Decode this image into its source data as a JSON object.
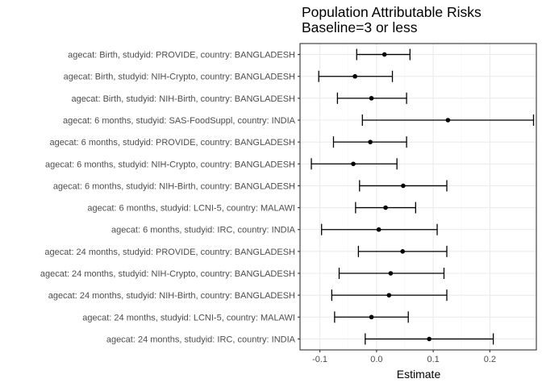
{
  "chart_data": {
    "type": "forest",
    "title": "Population Attributable Risks",
    "subtitle": "Baseline=3 or less",
    "xlabel": "Estimate",
    "ylabel": "",
    "xlim": [
      -0.135,
      0.282
    ],
    "xticks": [
      -0.1,
      0.0,
      0.1,
      0.2
    ],
    "xtick_labels": [
      "-0.1",
      "0.0",
      "0.1",
      "0.2"
    ],
    "grid": true,
    "theme": "bw",
    "colors": {
      "panel_border": "#333333",
      "grid_major": "#ebebeb",
      "grid_minor": "#f5f5f5",
      "mark": "#000000"
    },
    "rows": [
      {
        "label": "agecat: Birth, studyid: PROVIDE, country: BANGLADESH",
        "estimate": 0.014,
        "lower": -0.035,
        "upper": 0.059
      },
      {
        "label": "agecat: Birth, studyid: NIH-Crypto, country: BANGLADESH",
        "estimate": -0.038,
        "lower": -0.102,
        "upper": 0.028
      },
      {
        "label": "agecat: Birth, studyid: NIH-Birth, country: BANGLADESH",
        "estimate": -0.009,
        "lower": -0.069,
        "upper": 0.053
      },
      {
        "label": "agecat: 6 months, studyid: SAS-FoodSuppl, country: INDIA",
        "estimate": 0.126,
        "lower": -0.025,
        "upper": 0.277
      },
      {
        "label": "agecat: 6 months, studyid: PROVIDE, country: BANGLADESH",
        "estimate": -0.011,
        "lower": -0.076,
        "upper": 0.053
      },
      {
        "label": "agecat: 6 months, studyid: NIH-Crypto, country: BANGLADESH",
        "estimate": -0.041,
        "lower": -0.115,
        "upper": 0.036
      },
      {
        "label": "agecat: 6 months, studyid: NIH-Birth, country: BANGLADESH",
        "estimate": 0.047,
        "lower": -0.03,
        "upper": 0.124
      },
      {
        "label": "agecat: 6 months, studyid: LCNI-5, country: MALAWI",
        "estimate": 0.016,
        "lower": -0.037,
        "upper": 0.069
      },
      {
        "label": "agecat: 6 months, studyid: IRC, country: INDIA",
        "estimate": 0.004,
        "lower": -0.097,
        "upper": 0.107
      },
      {
        "label": "agecat: 24 months, studyid: PROVIDE, country: BANGLADESH",
        "estimate": 0.046,
        "lower": -0.032,
        "upper": 0.124
      },
      {
        "label": "agecat: 24 months, studyid: NIH-Crypto, country: BANGLADESH",
        "estimate": 0.025,
        "lower": -0.066,
        "upper": 0.119
      },
      {
        "label": "agecat: 24 months, studyid: NIH-Birth, country: BANGLADESH",
        "estimate": 0.022,
        "lower": -0.079,
        "upper": 0.124
      },
      {
        "label": "agecat: 24 months, studyid: LCNI-5, country: MALAWI",
        "estimate": -0.009,
        "lower": -0.074,
        "upper": 0.056
      },
      {
        "label": "agecat: 24 months, studyid: IRC, country: INDIA",
        "estimate": 0.093,
        "lower": -0.02,
        "upper": 0.206
      }
    ]
  }
}
